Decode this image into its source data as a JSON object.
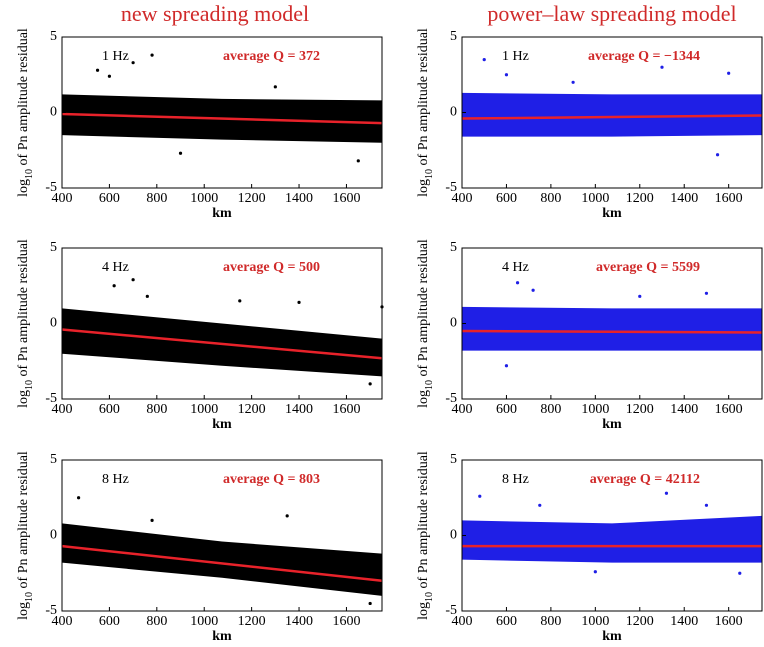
{
  "titles": [
    "new spreading model",
    "power–law spreading model"
  ],
  "chart_data": [
    {
      "type": "scatter",
      "label": "1 Hz",
      "annotation": "average Q = 372",
      "color": "#000000",
      "fit_color": "#e8222a",
      "xlabel": "km",
      "ylabel": {
        "base": "log",
        "sub": "10",
        "rest": " of Pn amplitude residual"
      },
      "xlim": [
        400,
        1750
      ],
      "xticks": [
        400,
        600,
        800,
        1000,
        1200,
        1400,
        1600
      ],
      "ylim": [
        -5,
        5
      ],
      "yticks": [
        -5,
        0,
        5
      ],
      "cloud": {
        "x": [
          400,
          1075,
          1750
        ],
        "upper": [
          1.2,
          0.9,
          0.8
        ],
        "lower": [
          -1.5,
          -1.8,
          -2.0
        ]
      },
      "points": {
        "x": [
          550,
          600,
          700,
          780,
          1300,
          900,
          1650
        ],
        "y": [
          2.8,
          2.4,
          3.3,
          3.8,
          1.7,
          -2.7,
          -3.2
        ]
      },
      "fit": {
        "x": [
          400,
          1750
        ],
        "y": [
          -0.1,
          -0.7
        ]
      }
    },
    {
      "type": "scatter",
      "label": "1 Hz",
      "annotation": "average Q = −1344",
      "color": "#1f1fe6",
      "fit_color": "#e8222a",
      "xlabel": "km",
      "ylabel": {
        "base": "log",
        "sub": "10",
        "rest": " of Pn amplitude residual"
      },
      "xlim": [
        400,
        1750
      ],
      "xticks": [
        400,
        600,
        800,
        1000,
        1200,
        1400,
        1600
      ],
      "ylim": [
        -5,
        5
      ],
      "yticks": [
        -5,
        0,
        5
      ],
      "cloud": {
        "x": [
          400,
          1075,
          1750
        ],
        "upper": [
          1.3,
          1.2,
          1.2
        ],
        "lower": [
          -1.6,
          -1.6,
          -1.5
        ]
      },
      "points": {
        "x": [
          500,
          600,
          900,
          1300,
          1600,
          1550
        ],
        "y": [
          3.5,
          2.5,
          2.0,
          3.0,
          2.6,
          -2.8
        ]
      },
      "fit": {
        "x": [
          400,
          1750
        ],
        "y": [
          -0.4,
          -0.2
        ]
      }
    },
    {
      "type": "scatter",
      "label": "4 Hz",
      "annotation": "average Q = 500",
      "color": "#000000",
      "fit_color": "#e8222a",
      "xlabel": "km",
      "ylabel": {
        "base": "log",
        "sub": "10",
        "rest": " of Pn amplitude residual"
      },
      "xlim": [
        400,
        1750
      ],
      "xticks": [
        400,
        600,
        800,
        1000,
        1200,
        1400,
        1600
      ],
      "ylim": [
        -5,
        5
      ],
      "yticks": [
        -5,
        0,
        5
      ],
      "cloud": {
        "x": [
          400,
          1075,
          1750
        ],
        "upper": [
          1.0,
          0,
          -1.0
        ],
        "lower": [
          -2.0,
          -2.8,
          -3.5
        ]
      },
      "points": {
        "x": [
          620,
          700,
          760,
          1150,
          1400,
          1750,
          1700
        ],
        "y": [
          2.5,
          2.9,
          1.8,
          1.5,
          1.4,
          1.1,
          -4.0
        ]
      },
      "fit": {
        "x": [
          400,
          1750
        ],
        "y": [
          -0.4,
          -2.3
        ]
      }
    },
    {
      "type": "scatter",
      "label": "4 Hz",
      "annotation": "average Q = 5599",
      "color": "#1f1fe6",
      "fit_color": "#e8222a",
      "xlabel": "km",
      "ylabel": {
        "base": "log",
        "sub": "10",
        "rest": " of Pn amplitude residual"
      },
      "xlim": [
        400,
        1750
      ],
      "xticks": [
        400,
        600,
        800,
        1000,
        1200,
        1400,
        1600
      ],
      "ylim": [
        -5,
        5
      ],
      "yticks": [
        -5,
        0,
        5
      ],
      "cloud": {
        "x": [
          400,
          1075,
          1750
        ],
        "upper": [
          1.1,
          1.0,
          1.0
        ],
        "lower": [
          -1.8,
          -1.8,
          -1.8
        ]
      },
      "points": {
        "x": [
          650,
          720,
          1200,
          1500,
          600
        ],
        "y": [
          2.7,
          2.2,
          1.8,
          2.0,
          -2.8
        ]
      },
      "fit": {
        "x": [
          400,
          1750
        ],
        "y": [
          -0.5,
          -0.6
        ]
      }
    },
    {
      "type": "scatter",
      "label": "8 Hz",
      "annotation": "average Q = 803",
      "color": "#000000",
      "fit_color": "#e8222a",
      "xlabel": "km",
      "ylabel": {
        "base": "log",
        "sub": "10",
        "rest": " of Pn amplitude residual"
      },
      "xlim": [
        400,
        1750
      ],
      "xticks": [
        400,
        600,
        800,
        1000,
        1200,
        1400,
        1600
      ],
      "ylim": [
        -5,
        5
      ],
      "yticks": [
        -5,
        0,
        5
      ],
      "cloud": {
        "x": [
          400,
          1075,
          1750
        ],
        "upper": [
          0.8,
          -0.4,
          -1.2
        ],
        "lower": [
          -1.8,
          -2.8,
          -4.0
        ]
      },
      "points": {
        "x": [
          470,
          780,
          1350,
          1700
        ],
        "y": [
          2.5,
          1.0,
          1.3,
          -4.5
        ]
      },
      "fit": {
        "x": [
          400,
          1750
        ],
        "y": [
          -0.7,
          -3.0
        ]
      }
    },
    {
      "type": "scatter",
      "label": "8 Hz",
      "annotation": "average Q = 42112",
      "color": "#1f1fe6",
      "fit_color": "#e8222a",
      "xlabel": "km",
      "ylabel": {
        "base": "log",
        "sub": "10",
        "rest": " of Pn amplitude residual"
      },
      "xlim": [
        400,
        1750
      ],
      "xticks": [
        400,
        600,
        800,
        1000,
        1200,
        1400,
        1600
      ],
      "ylim": [
        -5,
        5
      ],
      "yticks": [
        -5,
        0,
        5
      ],
      "cloud": {
        "x": [
          400,
          1075,
          1750
        ],
        "upper": [
          1.0,
          0.8,
          1.3
        ],
        "lower": [
          -1.6,
          -1.8,
          -1.8
        ]
      },
      "points": {
        "x": [
          480,
          750,
          1320,
          1500,
          1000,
          1650
        ],
        "y": [
          2.6,
          2.0,
          2.8,
          2.0,
          -2.4,
          -2.5
        ]
      },
      "fit": {
        "x": [
          400,
          1750
        ],
        "y": [
          -0.7,
          -0.7
        ]
      }
    }
  ]
}
